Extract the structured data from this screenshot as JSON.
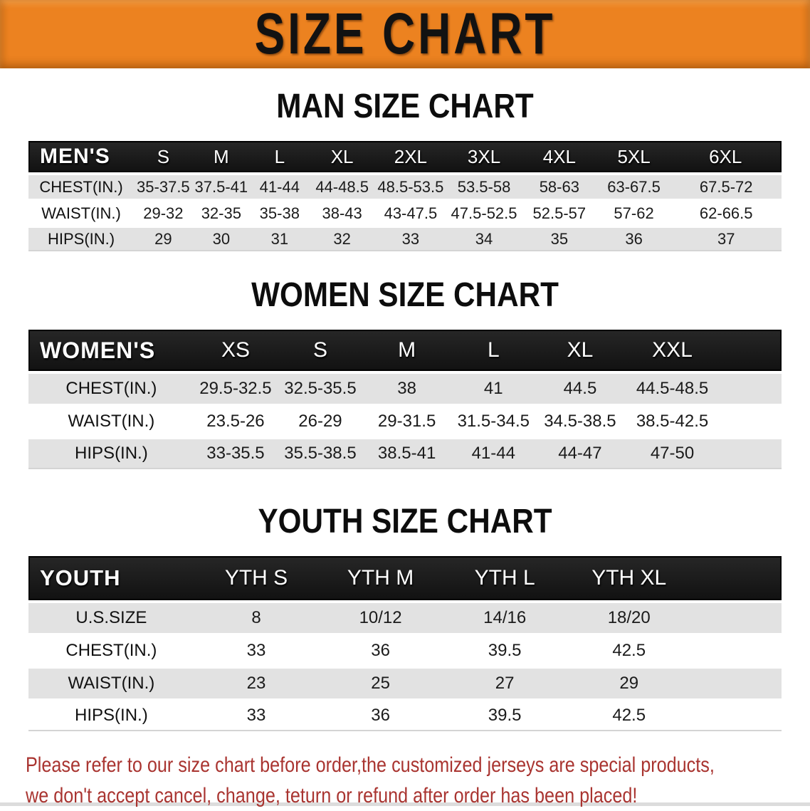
{
  "banner": {
    "title": "SIZE CHART"
  },
  "men": {
    "title": "MAN SIZE CHART",
    "table": {
      "label": "MEN'S",
      "columns": [
        "S",
        "M",
        "L",
        "XL",
        "2XL",
        "3XL",
        "4XL",
        "5XL",
        "6XL"
      ],
      "rows": [
        {
          "label": "CHEST(IN.)",
          "values": [
            "35-37.5",
            "37.5-41",
            "41-44",
            "44-48.5",
            "48.5-53.5",
            "53.5-58",
            "58-63",
            "63-67.5",
            "67.5-72"
          ]
        },
        {
          "label": "WAIST(IN.)",
          "values": [
            "29-32",
            "32-35",
            "35-38",
            "38-43",
            "43-47.5",
            "47.5-52.5",
            "52.5-57",
            "57-62",
            "62-66.5"
          ]
        },
        {
          "label": "HIPS(IN.)",
          "values": [
            "29",
            "30",
            "31",
            "32",
            "33",
            "34",
            "35",
            "36",
            "37"
          ]
        }
      ]
    }
  },
  "women": {
    "title": "WOMEN SIZE CHART",
    "table": {
      "label": "WOMEN'S",
      "columns": [
        "XS",
        "S",
        "M",
        "L",
        "XL",
        "XXL"
      ],
      "rows": [
        {
          "label": "CHEST(IN.)",
          "values": [
            "29.5-32.5",
            "32.5-35.5",
            "38",
            "41",
            "44.5",
            "44.5-48.5"
          ]
        },
        {
          "label": "WAIST(IN.)",
          "values": [
            "23.5-26",
            "26-29",
            "29-31.5",
            "31.5-34.5",
            "34.5-38.5",
            "38.5-42.5"
          ]
        },
        {
          "label": "HIPS(IN.)",
          "values": [
            "33-35.5",
            "35.5-38.5",
            "38.5-41",
            "41-44",
            "44-47",
            "47-50"
          ]
        }
      ]
    }
  },
  "youth": {
    "title": "YOUTH SIZE CHART",
    "table": {
      "label": "YOUTH",
      "columns": [
        "YTH S",
        "YTH M",
        "YTH L",
        "YTH XL"
      ],
      "rows": [
        {
          "label": "U.S.SIZE",
          "values": [
            "8",
            "10/12",
            "14/16",
            "18/20"
          ]
        },
        {
          "label": "CHEST(IN.)",
          "values": [
            "33",
            "36",
            "39.5",
            "42.5"
          ]
        },
        {
          "label": "WAIST(IN.)",
          "values": [
            "23",
            "25",
            "27",
            "29"
          ]
        },
        {
          "label": "HIPS(IN.)",
          "values": [
            "33",
            "36",
            "39.5",
            "42.5"
          ]
        }
      ]
    }
  },
  "disclaimer": {
    "line1": "Please refer to our size chart before order,the customized jerseys are special products,",
    "line2": "we don't accept cancel, change, teturn or refund after order has been placed!"
  },
  "colors": {
    "banner_orange": "#EC8220",
    "header_black": "#121212",
    "row_shade_gray": "#E2E2E2",
    "disclaimer_red": "#A93430"
  }
}
